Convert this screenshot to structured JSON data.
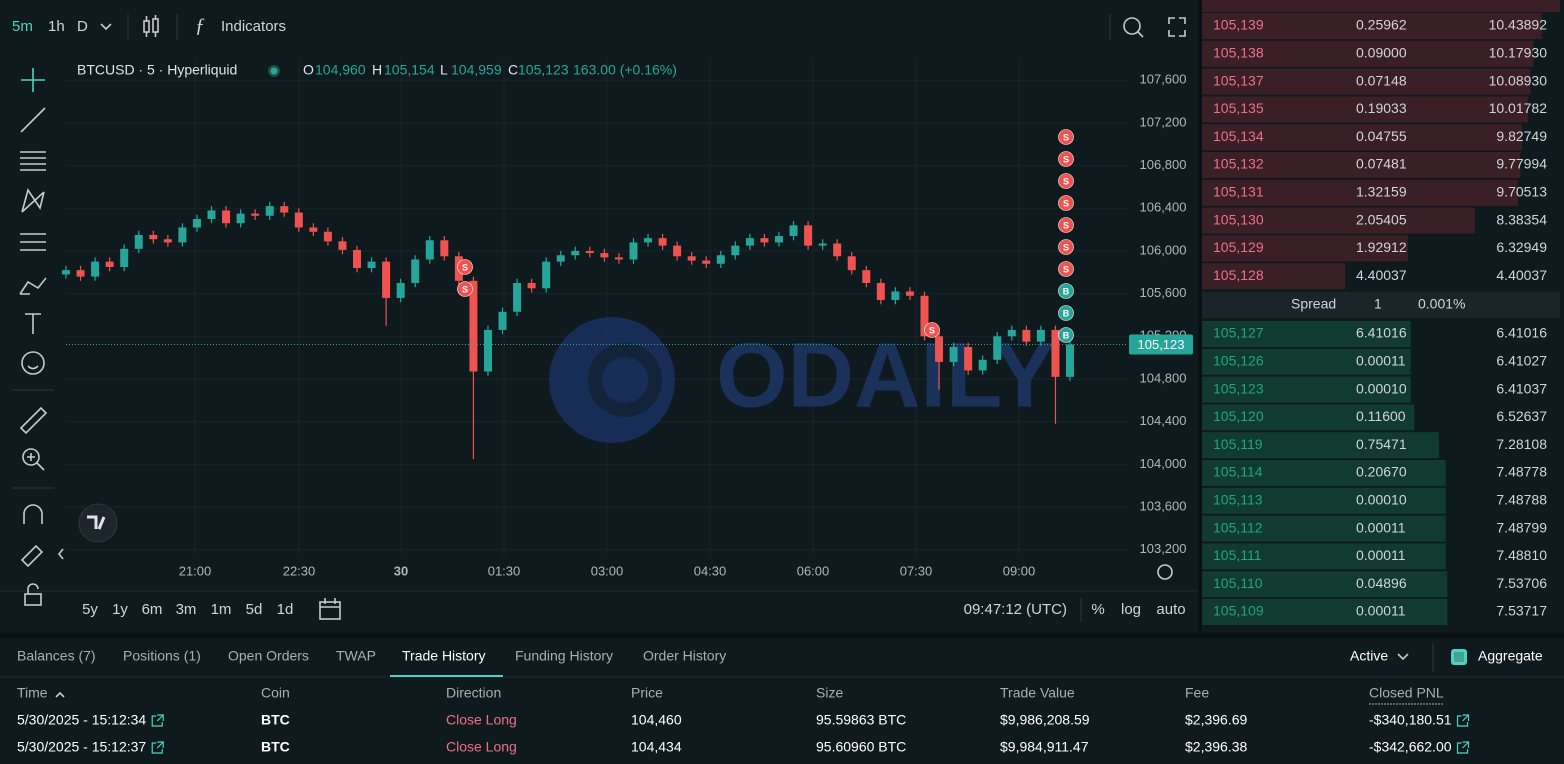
{
  "toolbar": {
    "intervals": [
      "5m",
      "1h",
      "D"
    ],
    "indicators": "Indicators"
  },
  "chart_data": {
    "type": "candlestick",
    "symbol": "BTCUSD · 5 · Hyperliquid",
    "ohlc": [
      {
        "label": "O",
        "value": "104,960"
      },
      {
        "label": "H",
        "value": "105,154"
      },
      {
        "label": "L",
        "value": "104,959"
      },
      {
        "label": "C",
        "value": "105,123"
      }
    ],
    "change": "163.00 (+0.16%)",
    "watermark": "ODAILY",
    "colors": {
      "up": "#26a69a",
      "down": "#ef5350"
    },
    "ylim": [
      103150,
      107790
    ],
    "yticks": [
      {
        "value": 107600,
        "label": "107,600"
      },
      {
        "value": 107200,
        "label": "107,200"
      },
      {
        "value": 106800,
        "label": "106,800"
      },
      {
        "value": 106400,
        "label": "106,400"
      },
      {
        "value": 106000,
        "label": "106,000"
      },
      {
        "value": 105600,
        "label": "105,600"
      },
      {
        "value": 105200,
        "label": "105,200"
      },
      {
        "value": 104800,
        "label": "104,800"
      },
      {
        "value": 104400,
        "label": "104,400"
      },
      {
        "value": 104000,
        "label": "104,000"
      },
      {
        "value": 103600,
        "label": "103,600"
      },
      {
        "value": 103200,
        "label": "103,200"
      }
    ],
    "xticks": [
      "21:00",
      "22:30",
      "30",
      "01:30",
      "03:00",
      "04:30",
      "06:00",
      "07:30",
      "09:00"
    ],
    "last_price": {
      "value": 105123,
      "label": "105,123"
    },
    "markers": [
      "S",
      "S",
      "S",
      "S",
      "S",
      "S",
      "S",
      "S",
      "S",
      "S",
      "B",
      "B",
      "B"
    ],
    "candles": [
      {
        "o": 105780,
        "h": 105860,
        "l": 105740,
        "c": 105820
      },
      {
        "o": 105820,
        "h": 105860,
        "l": 105720,
        "c": 105760
      },
      {
        "o": 105760,
        "h": 105940,
        "l": 105720,
        "c": 105900
      },
      {
        "o": 105900,
        "h": 105940,
        "l": 105810,
        "c": 105850
      },
      {
        "o": 105850,
        "h": 106060,
        "l": 105810,
        "c": 106020
      },
      {
        "o": 106020,
        "h": 106190,
        "l": 105980,
        "c": 106150
      },
      {
        "o": 106150,
        "h": 106190,
        "l": 106070,
        "c": 106110
      },
      {
        "o": 106110,
        "h": 106150,
        "l": 106040,
        "c": 106080
      },
      {
        "o": 106080,
        "h": 106260,
        "l": 106040,
        "c": 106220
      },
      {
        "o": 106220,
        "h": 106340,
        "l": 106180,
        "c": 106300
      },
      {
        "o": 106300,
        "h": 106420,
        "l": 106260,
        "c": 106380
      },
      {
        "o": 106380,
        "h": 106420,
        "l": 106220,
        "c": 106260
      },
      {
        "o": 106260,
        "h": 106390,
        "l": 106220,
        "c": 106350
      },
      {
        "o": 106350,
        "h": 106390,
        "l": 106290,
        "c": 106330
      },
      {
        "o": 106330,
        "h": 106460,
        "l": 106290,
        "c": 106420
      },
      {
        "o": 106420,
        "h": 106460,
        "l": 106320,
        "c": 106360
      },
      {
        "o": 106360,
        "h": 106400,
        "l": 106180,
        "c": 106220
      },
      {
        "o": 106220,
        "h": 106260,
        "l": 106140,
        "c": 106180
      },
      {
        "o": 106180,
        "h": 106220,
        "l": 106050,
        "c": 106090
      },
      {
        "o": 106090,
        "h": 106130,
        "l": 105970,
        "c": 106010
      },
      {
        "o": 106010,
        "h": 106050,
        "l": 105800,
        "c": 105840
      },
      {
        "o": 105840,
        "h": 105940,
        "l": 105800,
        "c": 105900
      },
      {
        "o": 105900,
        "h": 105940,
        "l": 105300,
        "c": 105560
      },
      {
        "o": 105560,
        "h": 105740,
        "l": 105520,
        "c": 105700
      },
      {
        "o": 105700,
        "h": 105960,
        "l": 105660,
        "c": 105920
      },
      {
        "o": 105920,
        "h": 106140,
        "l": 105880,
        "c": 106100
      },
      {
        "o": 106100,
        "h": 106140,
        "l": 105910,
        "c": 105950
      },
      {
        "o": 105950,
        "h": 105990,
        "l": 105680,
        "c": 105720
      },
      {
        "o": 105720,
        "h": 105760,
        "l": 104050,
        "c": 104870
      },
      {
        "o": 104870,
        "h": 105300,
        "l": 104830,
        "c": 105260
      },
      {
        "o": 105260,
        "h": 105470,
        "l": 105220,
        "c": 105430
      },
      {
        "o": 105430,
        "h": 105740,
        "l": 105390,
        "c": 105700
      },
      {
        "o": 105700,
        "h": 105740,
        "l": 105610,
        "c": 105650
      },
      {
        "o": 105650,
        "h": 105940,
        "l": 105610,
        "c": 105900
      },
      {
        "o": 105900,
        "h": 106000,
        "l": 105860,
        "c": 105960
      },
      {
        "o": 105960,
        "h": 106040,
        "l": 105920,
        "c": 106000
      },
      {
        "o": 106000,
        "h": 106040,
        "l": 105940,
        "c": 105980
      },
      {
        "o": 105980,
        "h": 106020,
        "l": 105900,
        "c": 105940
      },
      {
        "o": 105940,
        "h": 105980,
        "l": 105880,
        "c": 105920
      },
      {
        "o": 105920,
        "h": 106120,
        "l": 105880,
        "c": 106080
      },
      {
        "o": 106080,
        "h": 106160,
        "l": 106040,
        "c": 106120
      },
      {
        "o": 106120,
        "h": 106160,
        "l": 106010,
        "c": 106050
      },
      {
        "o": 106050,
        "h": 106090,
        "l": 105910,
        "c": 105950
      },
      {
        "o": 105950,
        "h": 105990,
        "l": 105870,
        "c": 105910
      },
      {
        "o": 105910,
        "h": 105950,
        "l": 105840,
        "c": 105880
      },
      {
        "o": 105880,
        "h": 106000,
        "l": 105840,
        "c": 105960
      },
      {
        "o": 105960,
        "h": 106090,
        "l": 105920,
        "c": 106050
      },
      {
        "o": 106050,
        "h": 106160,
        "l": 106010,
        "c": 106120
      },
      {
        "o": 106120,
        "h": 106160,
        "l": 106040,
        "c": 106080
      },
      {
        "o": 106080,
        "h": 106180,
        "l": 106040,
        "c": 106140
      },
      {
        "o": 106140,
        "h": 106280,
        "l": 106100,
        "c": 106240
      },
      {
        "o": 106240,
        "h": 106280,
        "l": 106010,
        "c": 106050
      },
      {
        "o": 106050,
        "h": 106110,
        "l": 106010,
        "c": 106070
      },
      {
        "o": 106070,
        "h": 106110,
        "l": 105910,
        "c": 105950
      },
      {
        "o": 105950,
        "h": 105990,
        "l": 105780,
        "c": 105820
      },
      {
        "o": 105820,
        "h": 105860,
        "l": 105660,
        "c": 105700
      },
      {
        "o": 105700,
        "h": 105740,
        "l": 105500,
        "c": 105540
      },
      {
        "o": 105540,
        "h": 105660,
        "l": 105500,
        "c": 105620
      },
      {
        "o": 105620,
        "h": 105660,
        "l": 105540,
        "c": 105580
      },
      {
        "o": 105580,
        "h": 105620,
        "l": 105160,
        "c": 105200
      },
      {
        "o": 105200,
        "h": 105240,
        "l": 104700,
        "c": 104960
      },
      {
        "o": 104960,
        "h": 105140,
        "l": 104920,
        "c": 105100
      },
      {
        "o": 105100,
        "h": 105140,
        "l": 104840,
        "c": 104880
      },
      {
        "o": 104880,
        "h": 105020,
        "l": 104840,
        "c": 104980
      },
      {
        "o": 104980,
        "h": 105240,
        "l": 104940,
        "c": 105200
      },
      {
        "o": 105200,
        "h": 105300,
        "l": 105160,
        "c": 105260
      },
      {
        "o": 105260,
        "h": 105300,
        "l": 105110,
        "c": 105150
      },
      {
        "o": 105150,
        "h": 105300,
        "l": 105110,
        "c": 105260
      },
      {
        "o": 105260,
        "h": 105300,
        "l": 104380,
        "c": 104820
      },
      {
        "o": 104820,
        "h": 105154,
        "l": 104780,
        "c": 105123
      }
    ]
  },
  "range_bar": {
    "ranges": [
      "5y",
      "1y",
      "6m",
      "3m",
      "1m",
      "5d",
      "1d"
    ],
    "clock": "09:47:12 (UTC)",
    "options": [
      "%",
      "log",
      "auto"
    ]
  },
  "order_book": {
    "asks": [
      [
        "105,139",
        "0.25962",
        "10.43892"
      ],
      [
        "105,138",
        "0.09000",
        "10.17930"
      ],
      [
        "105,137",
        "0.07148",
        "10.08930"
      ],
      [
        "105,135",
        "0.19033",
        "10.01782"
      ],
      [
        "105,134",
        "0.04755",
        "9.82749"
      ],
      [
        "105,132",
        "0.07481",
        "9.77994"
      ],
      [
        "105,131",
        "1.32159",
        "9.70513"
      ],
      [
        "105,130",
        "2.05405",
        "8.38354"
      ],
      [
        "105,129",
        "1.92912",
        "6.32949"
      ],
      [
        "105,128",
        "4.40037",
        "4.40037"
      ]
    ],
    "spread": {
      "label": "Spread",
      "value": "1",
      "percent": "0.001%"
    },
    "bids": [
      [
        "105,127",
        "6.41016",
        "6.41016"
      ],
      [
        "105,126",
        "0.00011",
        "6.41027"
      ],
      [
        "105,123",
        "0.00010",
        "6.41037"
      ],
      [
        "105,120",
        "0.11600",
        "6.52637"
      ],
      [
        "105,119",
        "0.75471",
        "7.28108"
      ],
      [
        "105,114",
        "0.20670",
        "7.48778"
      ],
      [
        "105,113",
        "0.00010",
        "7.48788"
      ],
      [
        "105,112",
        "0.00011",
        "7.48799"
      ],
      [
        "105,111",
        "0.00011",
        "7.48810"
      ],
      [
        "105,110",
        "0.04896",
        "7.53706"
      ],
      [
        "105,109",
        "0.00011",
        "7.53717"
      ]
    ]
  },
  "account": {
    "tabs": [
      "Balances (7)",
      "Positions (1)",
      "Open Orders",
      "TWAP",
      "Trade History",
      "Funding History",
      "Order History"
    ],
    "filter": "Active",
    "aggregate": "Aggregate",
    "columns": [
      "Time",
      "Coin",
      "Direction",
      "Price",
      "Size",
      "Trade Value",
      "Fee",
      "Closed PNL"
    ],
    "rows": [
      [
        "5/30/2025 - 15:12:34",
        "BTC",
        "Close Long",
        "104,460",
        "95.59863 BTC",
        "$9,986,208.59",
        "$2,396.69",
        "-$340,180.51"
      ],
      [
        "5/30/2025 - 15:12:37",
        "BTC",
        "Close Long",
        "104,434",
        "95.60960 BTC",
        "$9,984,911.47",
        "$2,396.38",
        "-$342,662.00"
      ]
    ]
  }
}
